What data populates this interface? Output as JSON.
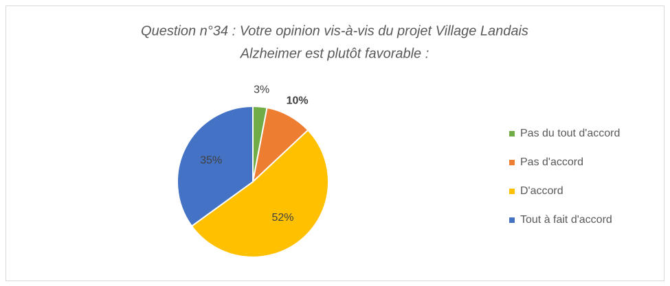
{
  "chart_data": {
    "type": "pie",
    "title": [
      "Question n°34 : Votre opinion vis-à-vis du projet Village Landais",
      "Alzheimer est plutôt favorable :"
    ],
    "categories": [
      "Pas du tout d'accord",
      "Pas d'accord",
      "D'accord",
      "Tout à fait d'accord"
    ],
    "values": [
      3,
      10,
      52,
      35
    ],
    "value_labels": [
      "3%",
      "10%",
      "52%",
      "35%"
    ],
    "colors": [
      "#70ad47",
      "#ed7d31",
      "#ffc000",
      "#4472c4"
    ],
    "legend": "right"
  }
}
